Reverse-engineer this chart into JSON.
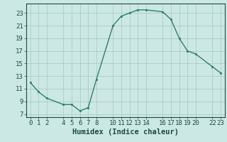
{
  "x": [
    0,
    1,
    2,
    4,
    5,
    6,
    7,
    8,
    10,
    11,
    12,
    13,
    14,
    16,
    17,
    18,
    19,
    20,
    22,
    23
  ],
  "y": [
    12.0,
    10.5,
    9.5,
    8.5,
    8.5,
    7.5,
    8.0,
    12.5,
    21.0,
    22.5,
    23.0,
    23.5,
    23.5,
    23.2,
    22.0,
    19.0,
    17.0,
    16.5,
    14.5,
    13.5
  ],
  "line_color": "#2e7d6e",
  "marker_color": "#2e7d6e",
  "bg_color": "#cce8e4",
  "grid_color": "#aaccc8",
  "xlabel": "Humidex (Indice chaleur)",
  "xticks": [
    0,
    1,
    2,
    4,
    5,
    6,
    7,
    8,
    10,
    11,
    12,
    13,
    14,
    16,
    17,
    18,
    19,
    20,
    22,
    23
  ],
  "yticks": [
    7,
    9,
    11,
    13,
    15,
    17,
    19,
    21,
    23
  ],
  "xlim": [
    -0.5,
    23.5
  ],
  "ylim": [
    6.5,
    24.5
  ],
  "xlabel_fontsize": 7.5,
  "tick_fontsize": 6.5
}
